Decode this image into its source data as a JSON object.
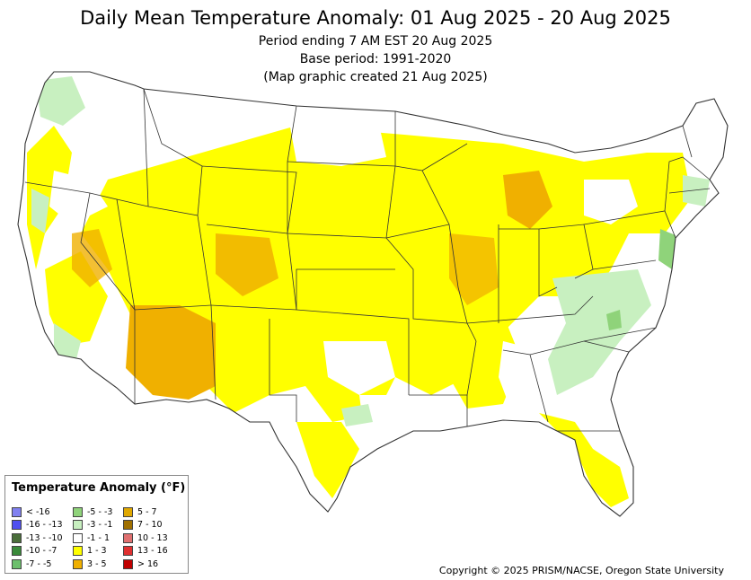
{
  "header": {
    "title": "Daily Mean Temperature Anomaly: 01 Aug 2025 - 20 Aug 2025",
    "period": "Period ending 7 AM EST 20 Aug 2025",
    "base": "Base period: 1991-2020",
    "created": "(Map graphic created 21 Aug 2025)"
  },
  "legend": {
    "title": "Temperature Anomaly (°F)",
    "items": [
      {
        "label": "< -16",
        "color": "#8080f0"
      },
      {
        "label": "-16 - -13",
        "color": "#5050f0"
      },
      {
        "label": "-13 - -10",
        "color": "#4a6e3a"
      },
      {
        "label": "-10 - -7",
        "color": "#3a8a3a"
      },
      {
        "label": "-7 - -5",
        "color": "#6cbf6c"
      },
      {
        "label": "-5 - -3",
        "color": "#8fd37a"
      },
      {
        "label": "-3 - -1",
        "color": "#c8f0c0"
      },
      {
        "label": "-1 - 1",
        "color": "#ffffff"
      },
      {
        "label": "1 - 3",
        "color": "#ffff00"
      },
      {
        "label": "3 - 5",
        "color": "#f0b000"
      },
      {
        "label": "5 - 7",
        "color": "#e0a800"
      },
      {
        "label": "7 - 10",
        "color": "#a07000"
      },
      {
        "label": "10 - 13",
        "color": "#e07070"
      },
      {
        "label": "13 - 16",
        "color": "#e03030"
      },
      {
        "label": "> 16",
        "color": "#c00000"
      }
    ]
  },
  "copyright": "Copyright © 2025 PRISM/NACSE, Oregon State University"
}
